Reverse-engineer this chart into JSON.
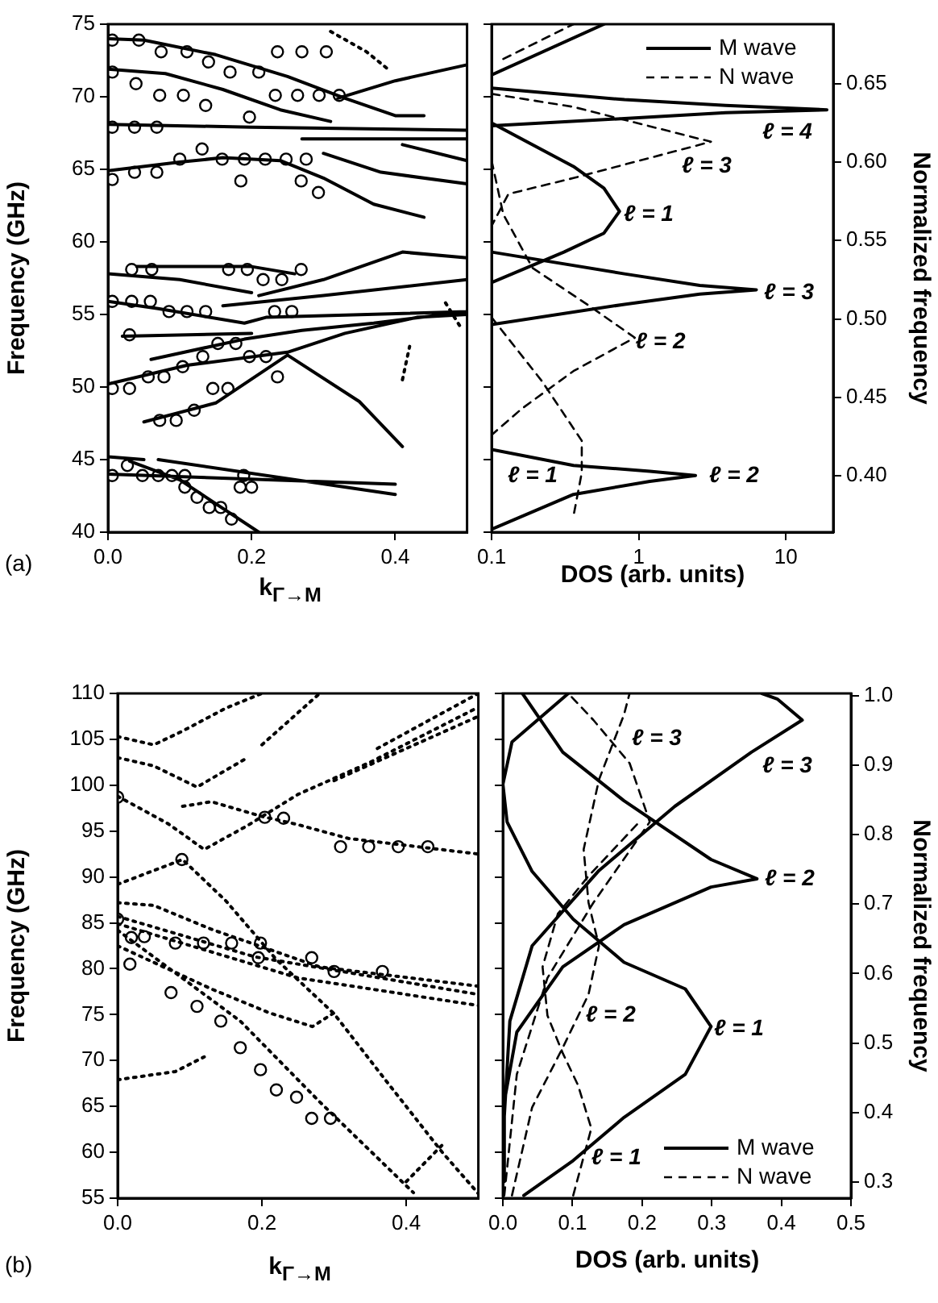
{
  "chart_data": [
    {
      "type": "line",
      "xlabel": "k$_{Γ→M}$",
      "ylabel": "Frequency (GHz)",
      "xlim": [
        0,
        0.5
      ],
      "xticks": [
        {
          "value": 0,
          "label": "0.0"
        },
        {
          "value": 0.2,
          "label": "0.2"
        },
        {
          "value": 0.4,
          "label": "0.4"
        }
      ],
      "ylim": [
        40,
        75
      ],
      "yticks": [
        40,
        45,
        50,
        55,
        60,
        65,
        70,
        75
      ],
      "legend": false,
      "annotations": [
        "(a)"
      ],
      "series": [
        {
          "type": "line",
          "color": "#000000",
          "line_style": "solid",
          "marker": "none",
          "x": [
            0,
            0.05,
            0.15,
            0.25,
            0.33,
            0.4,
            0.44,
            null,
            0,
            0.08,
            0.16,
            0.24,
            0.31,
            null,
            0.32,
            0.4,
            0.5,
            null,
            0,
            0.2,
            0.5,
            null,
            0.27,
            0.5,
            null,
            0,
            0.1,
            0.16,
            0.24,
            0.3,
            0.37,
            0.44,
            null,
            0.3,
            0.38,
            0.5,
            null,
            0.41,
            0.5,
            null,
            0.04,
            0.2,
            0.26,
            null,
            0,
            0.1,
            0.2,
            null,
            0.21,
            0.3,
            0.41,
            0.5,
            null,
            0,
            0.07,
            0.19,
            0.22,
            0.5,
            null,
            0.16,
            0.3,
            0.5,
            null,
            0.02,
            0.2,
            null,
            0.06,
            0.19,
            0.27,
            0.37,
            0.5,
            null,
            0,
            0.11,
            0.25,
            0.33,
            0.43,
            0.5,
            null,
            0.05,
            0.15,
            0.25,
            0.35,
            0.41,
            null,
            0,
            0.05,
            null,
            0,
            0.4,
            null,
            0.07,
            0.4,
            null,
            0.03,
            0.1,
            0.21
          ],
          "values": [
            74,
            73.9,
            72.9,
            71.4,
            69.9,
            68.7,
            68.7,
            null,
            71.9,
            71.6,
            70.5,
            69.1,
            68.3,
            null,
            69.9,
            71.1,
            72.2,
            null,
            68.1,
            67.9,
            67.7,
            null,
            67.1,
            67.1,
            null,
            64.9,
            65.5,
            65.8,
            65.6,
            64.4,
            62.6,
            61.7,
            null,
            66.1,
            64.8,
            64,
            null,
            66.7,
            65.6,
            null,
            58.3,
            58.3,
            57.8,
            null,
            57.8,
            57.4,
            56.5,
            null,
            56.3,
            57.4,
            59.3,
            58.9,
            null,
            55.9,
            55.4,
            54.4,
            54.8,
            55.2,
            null,
            55.6,
            56.3,
            57.4,
            null,
            53.5,
            53.7,
            null,
            51.9,
            53.3,
            53.9,
            54.4,
            55.2,
            null,
            50.2,
            51.5,
            52.4,
            53.7,
            54.8,
            55,
            null,
            47.6,
            48.9,
            52.2,
            49,
            45.9,
            null,
            45.2,
            45,
            null,
            44,
            43.3,
            null,
            45,
            42.6,
            null,
            44.9,
            43.6,
            40
          ]
        },
        {
          "type": "line",
          "color": "#000000",
          "line_style": "dotted",
          "marker": "none",
          "x": [
            0.31,
            0.36,
            0.39,
            null,
            0.41,
            0.42,
            null,
            0.47,
            0.49
          ],
          "values": [
            74.5,
            73.1,
            71.9,
            null,
            50.5,
            52.8,
            null,
            55.8,
            54.2
          ]
        },
        {
          "type": "scatter",
          "color": "#000000",
          "marker": "circle",
          "x": [
            0.006,
            0.043,
            0.074,
            0.11,
            0.14,
            0.17,
            0.21,
            0.236,
            0.27,
            0.304,
            0.006,
            0.039,
            0.072,
            0.105,
            0.136,
            0.197,
            0.233,
            0.264,
            0.294,
            0.322,
            0.006,
            0.037,
            0.068,
            0.131,
            0.1,
            0.159,
            0.19,
            0.219,
            0.248,
            0.276,
            0.185,
            0.269,
            0.293,
            0.006,
            0.037,
            0.068,
            0.033,
            0.061,
            0.168,
            0.194,
            0.216,
            0.242,
            0.269,
            0.006,
            0.033,
            0.059,
            0.085,
            0.11,
            0.136,
            0.232,
            0.256,
            0.03,
            0.132,
            0.153,
            0.178,
            0.197,
            0.22,
            0.236,
            0.006,
            0.03,
            0.056,
            0.078,
            0.104,
            0.146,
            0.167,
            0.12,
            0.072,
            0.095,
            0.006,
            0.027,
            0.048,
            0.07,
            0.089,
            0.107,
            0.107,
            0.124,
            0.141,
            0.157,
            0.172,
            0.184,
            0.2,
            0.189
          ],
          "values": [
            73.9,
            73.9,
            73.1,
            73.1,
            72.4,
            71.7,
            71.7,
            73.1,
            73.1,
            73.1,
            71.7,
            70.9,
            70.1,
            70.1,
            69.4,
            68.6,
            70.1,
            70.1,
            70.1,
            70.1,
            67.9,
            67.9,
            67.9,
            66.4,
            65.7,
            65.7,
            65.7,
            65.7,
            65.7,
            65.7,
            64.2,
            64.2,
            63.4,
            64.3,
            64.8,
            64.8,
            58.1,
            58.1,
            58.1,
            58.1,
            57.4,
            57.4,
            58.1,
            55.9,
            55.9,
            55.9,
            55.2,
            55.2,
            55.2,
            55.2,
            55.2,
            53.6,
            52.1,
            53,
            53,
            52.1,
            52.1,
            50.7,
            49.9,
            49.9,
            50.7,
            50.7,
            51.4,
            49.9,
            49.9,
            48.4,
            47.7,
            47.7,
            43.9,
            44.6,
            43.9,
            43.9,
            43.9,
            43.9,
            43.1,
            42.4,
            41.7,
            41.7,
            40.9,
            43.1,
            43.1,
            43.9
          ]
        }
      ]
    },
    {
      "type": "line",
      "xlabel": "DOS (arb. units)",
      "y2label": "Normalized frequency",
      "log": "x",
      "tick_labels": "x",
      "xlim": [
        0.1,
        21
      ],
      "xticks": [
        0.1,
        1,
        10
      ],
      "ylim": [
        40,
        75
      ],
      "yticks": [
        40,
        45,
        50,
        55,
        60,
        65,
        70,
        75
      ],
      "y2lim": [
        0.364,
        0.688
      ],
      "y2ticks": [
        {
          "value": 0.4,
          "label": "0.40"
        },
        {
          "value": 0.45,
          "label": "0.45"
        },
        {
          "value": 0.5,
          "label": "0.50"
        },
        {
          "value": 0.55,
          "label": "0.55"
        },
        {
          "value": 0.6,
          "label": "0.60"
        },
        {
          "value": 0.65,
          "label": "0.65"
        }
      ],
      "legend": "top right",
      "annotations": [
        "ℓ = 4",
        "ℓ = 3",
        "ℓ = 1",
        "ℓ = 2",
        {
          "text": "ℓ = 3",
          "x": 7.1,
          "y": 56.5
        },
        {
          "text": "ℓ = 1",
          "x": 0.79,
          "y": 61.9
        },
        {
          "text": "ℓ = 2",
          "x": 0.95,
          "y": 53.1
        }
      ],
      "series": [
        {
          "name": "M wave",
          "type": "line",
          "color": "#000000",
          "line_style": "solid",
          "x": [
            0.1,
            0.58,
            null,
            0.1,
            0.8,
            3.9,
            19,
            3.9,
            0.8,
            0.1,
            null,
            0.1,
            0.36,
            0.58,
            0.74,
            0.58,
            0.31,
            0.1,
            null,
            0.1,
            0.8,
            2.6,
            6.3,
            2.6,
            0.8,
            0.1,
            null,
            0.1,
            0.36,
            1.19,
            2.43,
            1.19,
            0.36,
            0.1
          ],
          "values": [
            71.5,
            75,
            null,
            70.6,
            69.8,
            69.4,
            69.1,
            68.9,
            68.5,
            68,
            null,
            68.2,
            65.2,
            63.7,
            62.1,
            60.6,
            59.3,
            57.2,
            null,
            59.3,
            57.8,
            57,
            56.7,
            56.4,
            55.7,
            54.3,
            null,
            45.7,
            44.6,
            44.2,
            43.9,
            43.5,
            42.6,
            40.2
          ]
        },
        {
          "name": "N wave",
          "type": "line",
          "color": "#000000",
          "line_style": "dashed",
          "x": [
            0.12,
            0.36,
            null,
            0.1,
            0.36,
            3.1,
            0.36,
            0.13,
            0.1,
            null,
            0.1,
            0.12,
            0.19,
            0.46,
            0.94,
            0.36,
            0.16,
            0.1,
            null,
            0.1,
            0.22,
            0.41,
            0.41,
            0.36
          ],
          "values": [
            72.6,
            75,
            null,
            70.2,
            69.3,
            66.9,
            64.4,
            63.3,
            61.1,
            null,
            65.6,
            61.9,
            58.2,
            55.6,
            53.4,
            51.1,
            48.5,
            46.7,
            null,
            54.8,
            50.4,
            46.3,
            44.1,
            41.1
          ]
        }
      ]
    },
    {
      "type": "line",
      "xlabel": "k$_{Γ→M}$",
      "ylabel": "Frequency (GHz)",
      "xlim": [
        0,
        0.5
      ],
      "xticks": [
        {
          "value": 0,
          "label": "0.0"
        },
        {
          "value": 0.2,
          "label": "0.2"
        },
        {
          "value": 0.4,
          "label": "0.4"
        }
      ],
      "ylim": [
        55,
        110
      ],
      "yticks": [
        55,
        60,
        65,
        70,
        75,
        80,
        85,
        90,
        95,
        100,
        105,
        110
      ],
      "legend": false,
      "annotations": [
        "(b)"
      ],
      "series": [
        {
          "type": "line",
          "color": "#000000",
          "line_style": "dotted",
          "marker": "none",
          "x": [
            0,
            0.05,
            0.09,
            0.15,
            0.2,
            null,
            0,
            0.05,
            0.11,
            0.18,
            null,
            0.2,
            0.28,
            null,
            0,
            0.07,
            0.12,
            0.18,
            0.25,
            0.35,
            0.5,
            null,
            0.09,
            0.13,
            0.2,
            0.25,
            0.32,
            0.5,
            null,
            0,
            0.09,
            0.15,
            0.22,
            0.3,
            0.37,
            0.45,
            0.5,
            null,
            0,
            0.05,
            0.13,
            0.28,
            0.5,
            null,
            0,
            0.19,
            0.5,
            null,
            0,
            0.25,
            0.5,
            null,
            0,
            0.13,
            0.21,
            0.27,
            0.3,
            null,
            0,
            0.17,
            0.28,
            0.41,
            null,
            0,
            0.08,
            0.12,
            null,
            0.4,
            0.45,
            null,
            0.3,
            0.5,
            null,
            0.36,
            0.5
          ],
          "values": [
            105.3,
            104.4,
            105.9,
            108.4,
            110,
            null,
            103,
            102.1,
            99.8,
            103,
            null,
            104.4,
            110,
            null,
            98.8,
            95.8,
            93,
            95.6,
            99,
            102.5,
            108.5,
            null,
            97.7,
            98.2,
            96.6,
            95.7,
            94.2,
            92.5,
            null,
            89.2,
            91.9,
            87.4,
            81,
            75.1,
            68,
            60,
            55.5,
            null,
            87.2,
            86.9,
            84.3,
            80.2,
            78.1,
            null,
            85.7,
            81.3,
            77.2,
            null,
            84.9,
            79,
            76,
            null,
            82.5,
            77.8,
            75.2,
            73.7,
            75.2,
            null,
            84.2,
            74.3,
            65.5,
            55.6,
            null,
            67.9,
            68.8,
            70.4,
            null,
            56.8,
            60.8,
            null,
            100.5,
            107.5,
            null,
            104,
            110
          ]
        },
        {
          "type": "scatter",
          "color": "#000000",
          "marker": "circle",
          "x": [
            0,
            0.089,
            0.204,
            0.23,
            0.309,
            0.348,
            0.389,
            0.43,
            0,
            0.019,
            0.037,
            0.08,
            0.119,
            0.158,
            0.198,
            0.195,
            0.269,
            0.3,
            0.367,
            0.017,
            0.074,
            0.11,
            0.143,
            0.17,
            0.198,
            0.22,
            0.248,
            0.269,
            0.295
          ],
          "values": [
            98.7,
            91.9,
            96.5,
            96.4,
            93.3,
            93.3,
            93.3,
            93.3,
            85.4,
            83.4,
            83.5,
            82.8,
            82.8,
            82.8,
            82.8,
            81.2,
            81.2,
            79.7,
            79.7,
            80.5,
            77.4,
            75.9,
            74.3,
            71.4,
            69,
            66.8,
            66,
            63.7,
            63.7
          ]
        }
      ]
    },
    {
      "type": "line",
      "xlabel": "DOS (arb. units)",
      "y2label": "Normalized frequency",
      "tick_labels": "x",
      "xlim": [
        0,
        0.5
      ],
      "xticks": [
        {
          "value": 0,
          "label": "0.0"
        },
        {
          "value": 0.1,
          "label": "0.1"
        },
        {
          "value": 0.2,
          "label": "0.2"
        },
        {
          "value": 0.3,
          "label": "0.3"
        },
        {
          "value": 0.4,
          "label": "0.4"
        },
        {
          "value": 0.5,
          "label": "0.5"
        }
      ],
      "ylim": [
        55,
        110
      ],
      "yticks": [
        55,
        60,
        65,
        70,
        75,
        80,
        85,
        90,
        95,
        100,
        105,
        110
      ],
      "y2lim": [
        0.277,
        1.003
      ],
      "y2ticks": [
        {
          "value": 0.3,
          "label": "0.3"
        },
        {
          "value": 0.4,
          "label": "0.4"
        },
        {
          "value": 0.5,
          "label": "0.5"
        },
        {
          "value": 0.6,
          "label": "0.6"
        },
        {
          "value": 0.7,
          "label": "0.7"
        },
        {
          "value": 0.8,
          "label": "0.8"
        },
        {
          "value": 0.9,
          "label": "0.9"
        },
        {
          "value": 1,
          "label": "1.0"
        }
      ],
      "legend": "bottom right",
      "annotations": [
        "ℓ = 3",
        "ℓ = 3",
        "ℓ = 1",
        {
          "text": "ℓ = 2",
          "x": 0.376,
          "y": 89.8
        },
        {
          "text": "ℓ = 2",
          "x": 0.119,
          "y": 74.9
        },
        {
          "text": "ℓ = 1",
          "x": 0.127,
          "y": 59.4
        }
      ],
      "series": [
        {
          "name": "M wave",
          "type": "line",
          "color": "#000000",
          "line_style": "solid",
          "x": [
            0.03,
            0.101,
            0.174,
            0.262,
            0.299,
            0.262,
            0.174,
            0.101,
            0.042,
            0.006,
            0,
            0.013,
            0.094,
            null,
            0,
            0.002,
            0.02,
            0.086,
            0.174,
            0.299,
            0.365,
            0.299,
            0.174,
            0.086,
            0.028,
            null,
            0.001,
            0.01,
            0.042,
            0.138,
            0.247,
            0.357,
            0.43,
            0.394,
            0.372
          ],
          "values": [
            55.3,
            59.1,
            63.8,
            68.5,
            73.7,
            77.8,
            80.7,
            85.4,
            90.6,
            96,
            100.1,
            104.7,
            110,
            null,
            56.8,
            65.5,
            73.1,
            80.2,
            84.8,
            88.9,
            89.8,
            91.9,
            98.3,
            103.6,
            110,
            null,
            62.6,
            74.3,
            82.5,
            90.7,
            97.7,
            103.6,
            107.1,
            109.4,
            110
          ]
        },
        {
          "name": "N wave",
          "type": "line",
          "color": "#000000",
          "line_style": "dashed",
          "x": [
            0.101,
            0.127,
            0.108,
            0.086,
            0.064,
            0.057,
            0.079,
            0.123,
            0.196,
            null,
            0.013,
            0.042,
            0.086,
            0.123,
            0.138,
            0.123,
            0.116,
            0.138,
            0.174,
            0.182,
            null,
            0.002,
            0.02,
            0.064,
            0.13,
            0.211,
            0.182,
            0.13,
            0.094
          ],
          "values": [
            55.3,
            62.6,
            67.3,
            70.8,
            74.9,
            80.2,
            86,
            90.1,
            96,
            null,
            55.3,
            64.9,
            71.4,
            77.2,
            82.5,
            87.2,
            93,
            100.6,
            107.7,
            110,
            null,
            55.3,
            68.5,
            79,
            87.2,
            96,
            102.4,
            107.1,
            110
          ]
        }
      ]
    }
  ]
}
